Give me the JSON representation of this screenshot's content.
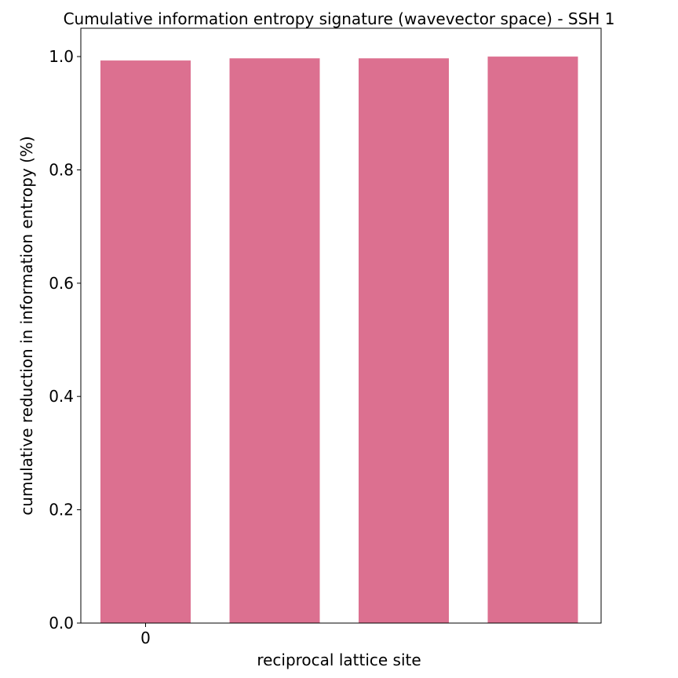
{
  "chart_data": {
    "type": "bar",
    "title": "Cumulative information entropy signature (wavevector space) - SSH 1",
    "xlabel": "reciprocal lattice site",
    "ylabel": "cumulative reduction in information entropy (%)",
    "x_tick_labels": [
      "0"
    ],
    "y_tick_labels": [
      "0.0",
      "0.2",
      "0.4",
      "0.6",
      "0.8",
      "1.0"
    ],
    "y_ticks": [
      0.0,
      0.2,
      0.4,
      0.6,
      0.8,
      1.0
    ],
    "ylim": [
      0,
      1.05
    ],
    "x": [
      0,
      1,
      2,
      3
    ],
    "values": [
      0.993,
      0.997,
      0.997,
      1.0
    ],
    "bar_color": "#dc7090",
    "grid": false,
    "legend": "none"
  }
}
